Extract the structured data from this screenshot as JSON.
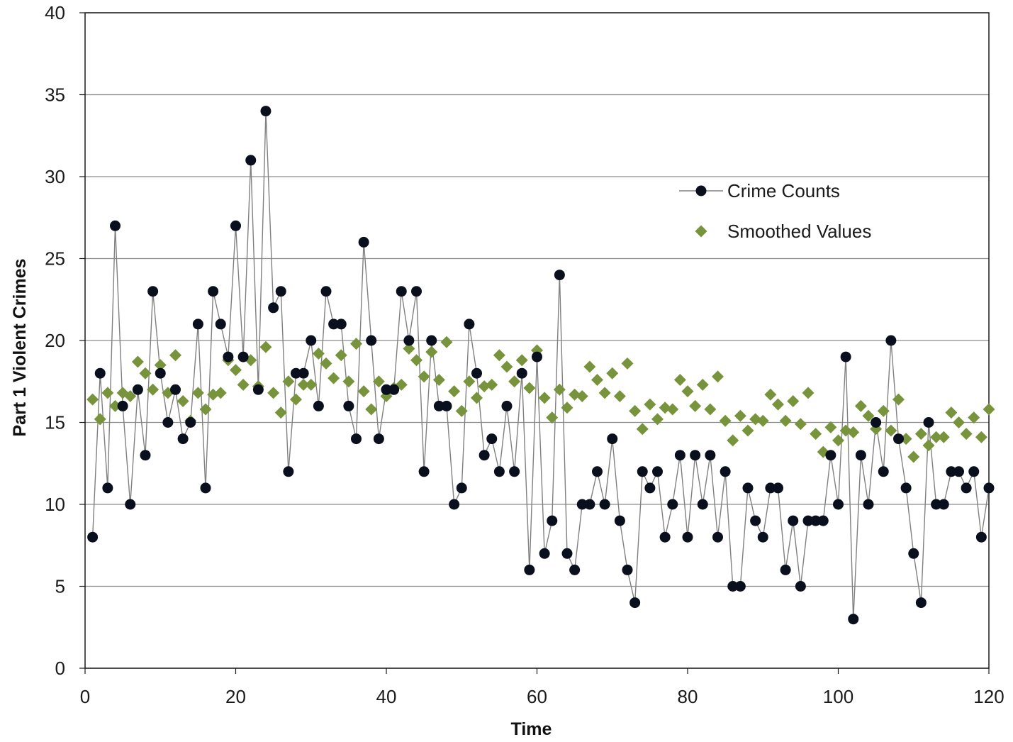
{
  "chart_data": {
    "type": "scatter",
    "title": "",
    "xlabel": "Time",
    "ylabel": "Part 1 Violent  Crimes",
    "xlim": [
      0,
      120
    ],
    "ylim": [
      0,
      40
    ],
    "x_ticks": [
      0,
      20,
      40,
      60,
      80,
      100,
      120
    ],
    "y_ticks": [
      0,
      5,
      10,
      15,
      20,
      25,
      30,
      35,
      40
    ],
    "grid": "horizontal",
    "legend_position": "right, upper-middle",
    "series": [
      {
        "name": "Crime Counts",
        "style": "line-with-markers",
        "line_color": "#808080",
        "marker_color": "#0a0f1e",
        "marker": "circle",
        "x": [
          1,
          2,
          3,
          4,
          5,
          6,
          7,
          8,
          9,
          10,
          11,
          12,
          13,
          14,
          15,
          16,
          17,
          18,
          19,
          20,
          21,
          22,
          23,
          24,
          25,
          26,
          27,
          28,
          29,
          30,
          31,
          32,
          33,
          34,
          35,
          36,
          37,
          38,
          39,
          40,
          41,
          42,
          43,
          44,
          45,
          46,
          47,
          48,
          49,
          50,
          51,
          52,
          53,
          54,
          55,
          56,
          57,
          58,
          59,
          60,
          61,
          62,
          63,
          64,
          65,
          66,
          67,
          68,
          69,
          70,
          71,
          72,
          73,
          74,
          75,
          76,
          77,
          78,
          79,
          80,
          81,
          82,
          83,
          84,
          85,
          86,
          87,
          88,
          89,
          90,
          91,
          92,
          93,
          94,
          95,
          96,
          97,
          98,
          99,
          100,
          101,
          102,
          103,
          104,
          105,
          106,
          107,
          108,
          109,
          110,
          111,
          112,
          113,
          114,
          115,
          116,
          117,
          118,
          119,
          120
        ],
        "y": [
          8,
          18,
          11,
          27,
          16,
          10,
          17,
          13,
          23,
          18,
          15,
          17,
          14,
          15,
          21,
          11,
          23,
          21,
          19,
          27,
          19,
          31,
          17,
          34,
          22,
          23,
          12,
          18,
          18,
          20,
          16,
          23,
          21,
          21,
          16,
          14,
          26,
          20,
          14,
          17,
          17,
          23,
          20,
          23,
          12,
          20,
          16,
          16,
          10,
          11,
          21,
          18,
          13,
          14,
          12,
          16,
          12,
          18,
          6,
          19,
          7,
          9,
          24,
          7,
          6,
          10,
          10,
          12,
          10,
          14,
          9,
          6,
          4,
          12,
          11,
          12,
          8,
          10,
          13,
          8,
          13,
          10,
          13,
          8,
          12,
          5,
          5,
          11,
          9,
          8,
          11,
          11,
          6,
          9,
          5,
          9,
          9,
          9,
          13,
          10,
          19,
          3,
          13,
          10,
          15,
          12,
          20,
          14,
          11,
          7,
          4,
          15,
          10,
          10,
          12,
          12,
          11,
          12,
          8,
          11
        ]
      },
      {
        "name": "Smoothed Values",
        "style": "markers",
        "marker_color": "#77933c",
        "marker": "diamond",
        "x": [
          1,
          2,
          3,
          4,
          5,
          6,
          7,
          8,
          9,
          10,
          11,
          12,
          13,
          14,
          15,
          16,
          17,
          18,
          19,
          20,
          21,
          22,
          23,
          24,
          25,
          26,
          27,
          28,
          29,
          30,
          31,
          32,
          33,
          34,
          35,
          36,
          37,
          38,
          39,
          40,
          41,
          42,
          43,
          44,
          45,
          46,
          47,
          48,
          49,
          50,
          51,
          52,
          53,
          54,
          55,
          56,
          57,
          58,
          59,
          60,
          61,
          62,
          63,
          64,
          65,
          66,
          67,
          68,
          69,
          70,
          71,
          72,
          73,
          74,
          75,
          76,
          77,
          78,
          79,
          80,
          81,
          82,
          83,
          84,
          85,
          86,
          87,
          88,
          89,
          90,
          91,
          92,
          93,
          94,
          95,
          96,
          97,
          98,
          99,
          100,
          101,
          102,
          103,
          104,
          105,
          106,
          107,
          108,
          109,
          110,
          111,
          112,
          113,
          114,
          115,
          116,
          117,
          118,
          119,
          120
        ],
        "y": [
          16.4,
          15.2,
          16.8,
          16.0,
          16.8,
          16.6,
          18.7,
          18.0,
          17.0,
          18.5,
          16.8,
          19.1,
          16.3,
          15.1,
          16.8,
          15.8,
          16.7,
          16.8,
          18.8,
          18.2,
          17.3,
          18.8,
          17.2,
          19.6,
          16.8,
          15.6,
          17.5,
          16.4,
          17.3,
          17.3,
          19.2,
          18.6,
          17.7,
          19.1,
          17.5,
          19.8,
          16.9,
          15.8,
          17.5,
          16.6,
          17.1,
          17.3,
          19.5,
          18.8,
          17.8,
          19.3,
          17.6,
          19.9,
          16.9,
          15.7,
          17.5,
          16.5,
          17.2,
          17.3,
          19.1,
          18.4,
          17.5,
          18.8,
          17.1,
          19.4,
          16.5,
          15.3,
          17.0,
          15.9,
          16.7,
          16.6,
          18.4,
          17.6,
          16.8,
          18.0,
          16.6,
          18.6,
          15.7,
          14.6,
          16.1,
          15.2,
          15.9,
          15.8,
          17.6,
          16.9,
          16.0,
          17.3,
          15.8,
          17.8,
          15.1,
          13.9,
          15.4,
          14.5,
          15.2,
          15.1,
          16.7,
          16.1,
          15.1,
          16.3,
          14.9,
          16.8,
          14.3,
          13.2,
          14.7,
          13.9,
          14.5,
          14.4,
          16.0,
          15.4,
          14.6,
          15.7,
          14.5,
          16.4,
          14.0,
          12.9,
          14.3,
          13.6,
          14.1,
          14.1,
          15.6,
          15.0,
          14.3,
          15.3,
          14.1,
          15.8
        ]
      }
    ]
  }
}
